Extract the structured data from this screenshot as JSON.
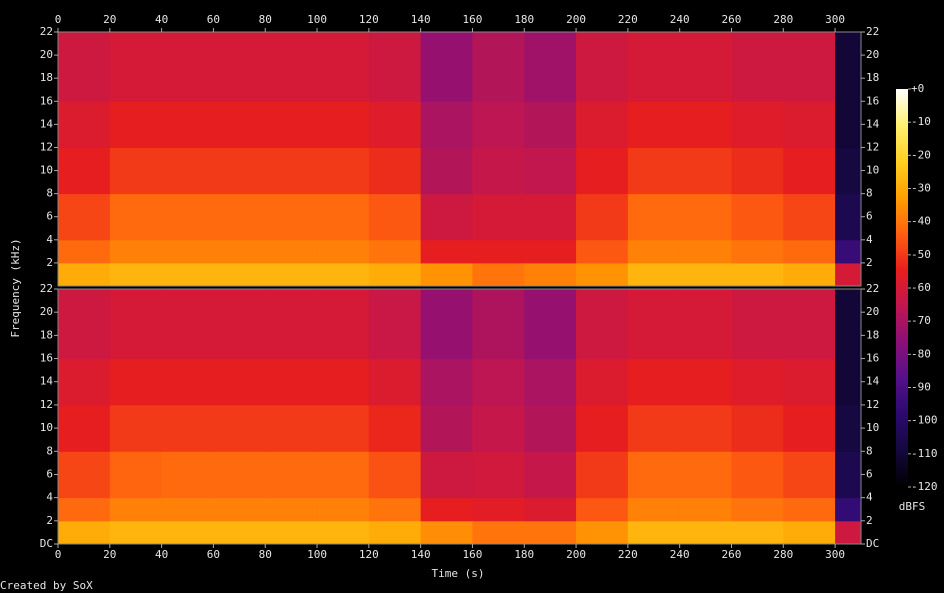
{
  "chart_data": {
    "type": "spectrogram",
    "x_label": "Time (s)",
    "y_label": "Frequency (kHz)",
    "xlim": [
      0,
      310
    ],
    "xticks": [
      0,
      20,
      40,
      60,
      80,
      100,
      120,
      140,
      160,
      180,
      200,
      220,
      240,
      260,
      280,
      300
    ],
    "time_bins": [
      0,
      20,
      40,
      60,
      80,
      100,
      120,
      140,
      160,
      180,
      200,
      220,
      240,
      260,
      280,
      300,
      310
    ],
    "freq_bins": [
      0,
      2,
      4,
      8,
      12,
      16,
      22
    ],
    "panels": [
      {
        "ylim": [
          0,
          22
        ],
        "yticks": [
          2,
          4,
          6,
          8,
          10,
          12,
          14,
          16,
          18,
          20,
          22
        ],
        "values": [
          [
            -30,
            -28,
            -28,
            -28,
            -28,
            -28,
            -30,
            -35,
            -40,
            -38,
            -35,
            -28,
            -28,
            -28,
            -30,
            -60
          ],
          [
            -42,
            -38,
            -38,
            -38,
            -38,
            -38,
            -40,
            -55,
            -55,
            -55,
            -45,
            -38,
            -38,
            -40,
            -42,
            -95
          ],
          [
            -48,
            -42,
            -42,
            -42,
            -42,
            -42,
            -45,
            -62,
            -60,
            -60,
            -50,
            -42,
            -42,
            -45,
            -48,
            -105
          ],
          [
            -55,
            -50,
            -50,
            -50,
            -50,
            -50,
            -52,
            -68,
            -64,
            -65,
            -55,
            -50,
            -50,
            -52,
            -55,
            -108
          ],
          [
            -58,
            -55,
            -55,
            -55,
            -55,
            -55,
            -57,
            -70,
            -66,
            -68,
            -58,
            -55,
            -55,
            -57,
            -58,
            -110
          ],
          [
            -62,
            -60,
            -60,
            -60,
            -60,
            -60,
            -62,
            -74,
            -68,
            -72,
            -62,
            -60,
            -60,
            -62,
            -62,
            -110
          ]
        ]
      },
      {
        "ylim": [
          0,
          22
        ],
        "yticks": [
          {
            "value": 0,
            "label": "DC"
          },
          2,
          4,
          6,
          8,
          10,
          12,
          14,
          16,
          18,
          20,
          22
        ],
        "values": [
          [
            -30,
            -28,
            -28,
            -28,
            -28,
            -28,
            -30,
            -36,
            -40,
            -40,
            -35,
            -28,
            -28,
            -28,
            -30,
            -62
          ],
          [
            -42,
            -38,
            -38,
            -38,
            -38,
            -38,
            -40,
            -55,
            -56,
            -58,
            -45,
            -38,
            -38,
            -40,
            -42,
            -96
          ],
          [
            -48,
            -43,
            -42,
            -42,
            -42,
            -42,
            -46,
            -62,
            -61,
            -64,
            -50,
            -42,
            -42,
            -45,
            -48,
            -105
          ],
          [
            -55,
            -50,
            -50,
            -50,
            -50,
            -50,
            -53,
            -68,
            -64,
            -68,
            -55,
            -50,
            -50,
            -52,
            -55,
            -108
          ],
          [
            -58,
            -55,
            -55,
            -55,
            -55,
            -55,
            -58,
            -70,
            -66,
            -70,
            -58,
            -55,
            -55,
            -57,
            -58,
            -110
          ],
          [
            -62,
            -60,
            -60,
            -60,
            -60,
            -60,
            -63,
            -74,
            -69,
            -74,
            -62,
            -60,
            -60,
            -62,
            -62,
            -110
          ]
        ]
      }
    ],
    "colorbar": {
      "label": "dBFS",
      "clim": [
        -120,
        0
      ],
      "ticks": [
        {
          "value": 0,
          "label": "+0"
        },
        -10,
        -20,
        -30,
        -40,
        -50,
        -60,
        -70,
        -80,
        -90,
        -100,
        -110,
        -120
      ],
      "colors": [
        "#000000",
        "#14083c",
        "#2a0a6e",
        "#55108a",
        "#8a1078",
        "#c01650",
        "#e81e1e",
        "#ff6010",
        "#ffa000",
        "#ffd020",
        "#fff070",
        "#ffffff"
      ]
    }
  },
  "footer": "Created by SoX"
}
